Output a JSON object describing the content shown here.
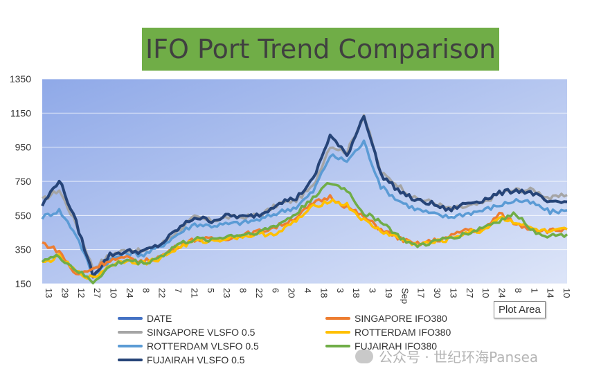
{
  "chart_data": {
    "type": "line",
    "title": "IFO Port Trend Comparison",
    "ylim": [
      150,
      1350
    ],
    "yticks": [
      150,
      350,
      550,
      750,
      950,
      1150,
      1350
    ],
    "x_ticks": [
      "13",
      "29",
      "12",
      "27",
      "10",
      "24",
      "8",
      "22",
      "7",
      "21",
      "5",
      "23",
      "8",
      "22",
      "6",
      "20",
      "4",
      "18",
      "3",
      "18",
      "3",
      "19",
      "Sep",
      "17",
      "30",
      "13",
      "27",
      "10",
      "24",
      "8",
      "1",
      "14",
      "10"
    ],
    "legend_entries": [
      "DATE",
      "SINGAPORE IFO380",
      "SINGAPORE VLSFO 0.5",
      "ROTTERDAM IFO380",
      "ROTTERDAM VLSFO 0.5",
      "FUJAIRAH IFO380",
      "FUJAIRAH VLSFO 0.5"
    ],
    "series": [
      {
        "name": "DATE",
        "color": "#4472c4",
        "values": []
      },
      {
        "name": "SINGAPORE IFO380",
        "color": "#ed7d31",
        "values": [
          390,
          340,
          200,
          240,
          290,
          300,
          280,
          310,
          370,
          410,
          410,
          420,
          440,
          460,
          490,
          540,
          620,
          660,
          600,
          540,
          470,
          420,
          380,
          400,
          420,
          470,
          460,
          560,
          500,
          470,
          460,
          470
        ]
      },
      {
        "name": "SINGAPORE VLSFO 0.5",
        "color": "#a5a5a5",
        "values": [
          640,
          700,
          500,
          240,
          320,
          350,
          340,
          380,
          460,
          540,
          520,
          540,
          540,
          560,
          620,
          640,
          720,
          960,
          920,
          1140,
          800,
          730,
          650,
          630,
          590,
          600,
          620,
          680,
          700,
          700,
          650,
          670
        ]
      },
      {
        "name": "ROTTERDAM IFO380",
        "color": "#ffc000",
        "values": [
          270,
          310,
          220,
          180,
          260,
          290,
          270,
          300,
          360,
          400,
          400,
          420,
          430,
          440,
          450,
          520,
          600,
          640,
          610,
          520,
          460,
          420,
          380,
          390,
          410,
          450,
          460,
          540,
          510,
          470,
          450,
          470
        ]
      },
      {
        "name": "ROTTERDAM VLSFO 0.5",
        "color": "#5b9bd5",
        "values": [
          540,
          580,
          440,
          200,
          290,
          330,
          320,
          370,
          440,
          500,
          490,
          500,
          510,
          530,
          570,
          600,
          690,
          900,
          870,
          980,
          720,
          640,
          590,
          560,
          540,
          560,
          580,
          610,
          640,
          620,
          570,
          580
        ]
      },
      {
        "name": "FUJAIRAH IFO380",
        "color": "#70ad47",
        "values": [
          290,
          310,
          230,
          160,
          250,
          290,
          270,
          310,
          380,
          410,
          410,
          430,
          440,
          460,
          500,
          560,
          660,
          740,
          700,
          560,
          520,
          430,
          370,
          390,
          420,
          440,
          480,
          520,
          560,
          460,
          430,
          440
        ]
      },
      {
        "name": "FUJAIRAH VLSFO 0.5",
        "color": "#264478",
        "values": [
          610,
          760,
          510,
          200,
          320,
          340,
          340,
          380,
          470,
          540,
          520,
          550,
          540,
          560,
          630,
          650,
          760,
          1020,
          900,
          1140,
          790,
          700,
          640,
          620,
          580,
          620,
          640,
          680,
          700,
          680,
          620,
          630
        ]
      }
    ]
  },
  "tooltip": {
    "text": "Plot Area"
  },
  "watermark": {
    "text": "公众号 · 世纪环海Pansea"
  }
}
